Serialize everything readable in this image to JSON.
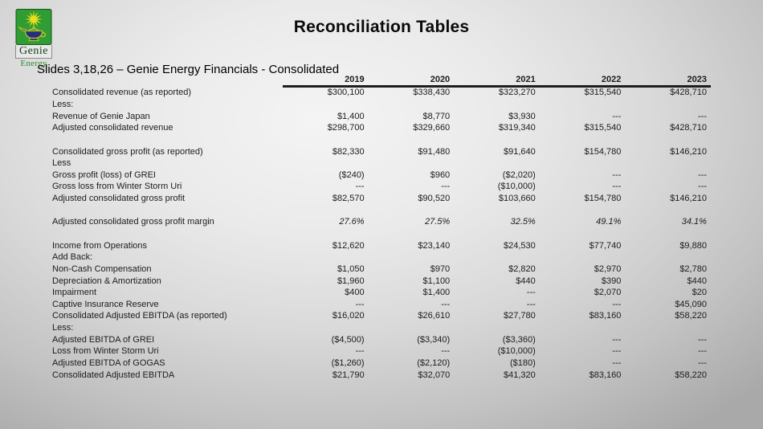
{
  "title": "Reconciliation Tables",
  "subtitle": "Slides 3,18,26 – Genie Energy Financials - Consolidated",
  "logo": {
    "name": "Genie",
    "sub": "Energy",
    "colors": {
      "square_green": "#2f9d33",
      "star_yellow": "#eade1d",
      "lamp_blue": "#22307c",
      "lamp_outline_olive": "#b9bf2a",
      "energy_text_green": "#2e8b2e"
    }
  },
  "chart_data": {
    "type": "table",
    "title": "Reconciliation Tables",
    "columns": [
      "2019",
      "2020",
      "2021",
      "2022",
      "2023"
    ],
    "rows": [
      {
        "label": "Consolidated revenue (as reported)",
        "values": [
          "$300,100",
          "$338,430",
          "$323,270",
          "$315,540",
          "$428,710"
        ]
      },
      {
        "label": "Less:",
        "values": []
      },
      {
        "label": "Revenue of Genie Japan",
        "values": [
          "$1,400",
          "$8,770",
          "$3,930",
          "---",
          "---"
        ]
      },
      {
        "label": "Adjusted consolidated revenue",
        "values": [
          "$298,700",
          "$329,660",
          "$319,340",
          "$315,540",
          "$428,710"
        ]
      },
      {
        "label": "",
        "values": [],
        "spacer": true
      },
      {
        "label": "Consolidated gross profit (as reported)",
        "values": [
          "$82,330",
          "$91,480",
          "$91,640",
          "$154,780",
          "$146,210"
        ]
      },
      {
        "label": "Less",
        "values": []
      },
      {
        "label": "Gross profit (loss) of GREI",
        "values": [
          "($240)",
          "$960",
          "($2,020)",
          "---",
          "---"
        ]
      },
      {
        "label": "Gross loss from Winter Storm Uri",
        "values": [
          "---",
          "---",
          "($10,000)",
          "---",
          "---"
        ]
      },
      {
        "label": "Adjusted consolidated gross profit",
        "values": [
          "$82,570",
          "$90,520",
          "$103,660",
          "$154,780",
          "$146,210"
        ]
      },
      {
        "label": "",
        "values": [],
        "spacer": true
      },
      {
        "label": "Adjusted consolidated gross profit margin",
        "values": [
          "27.6%",
          "27.5%",
          "32.5%",
          "49.1%",
          "34.1%"
        ],
        "italic": true
      },
      {
        "label": "",
        "values": [],
        "spacer": true
      },
      {
        "label": "Income from Operations",
        "values": [
          "$12,620",
          "$23,140",
          "$24,530",
          "$77,740",
          "$9,880"
        ]
      },
      {
        "label": "Add Back:",
        "values": []
      },
      {
        "label": "Non-Cash Compensation",
        "values": [
          "$1,050",
          "$970",
          "$2,820",
          "$2,970",
          "$2,780"
        ]
      },
      {
        "label": "Depreciation & Amortization",
        "values": [
          "$1,960",
          "$1,100",
          "$440",
          "$390",
          "$440"
        ]
      },
      {
        "label": "Impairment",
        "values": [
          "$400",
          "$1,400",
          "---",
          "$2,070",
          "$20"
        ]
      },
      {
        "label": "Captive Insurance Reserve",
        "values": [
          "---",
          "---",
          "---",
          "---",
          "$45,090"
        ]
      },
      {
        "label": "Consolidated Adjusted EBITDA (as reported)",
        "values": [
          "$16,020",
          "$26,610",
          "$27,780",
          "$83,160",
          "$58,220"
        ]
      },
      {
        "label": "Less:",
        "values": []
      },
      {
        "label": "Adjusted EBITDA of GREI",
        "values": [
          "($4,500)",
          "($3,340)",
          "($3,360)",
          "---",
          "---"
        ]
      },
      {
        "label": "Loss from Winter Storm Uri",
        "values": [
          "---",
          "---",
          "($10,000)",
          "---",
          "---"
        ]
      },
      {
        "label": "Adjusted EBITDA of GOGAS",
        "values": [
          "($1,260)",
          "($2,120)",
          "($180)",
          "---",
          "---"
        ]
      },
      {
        "label": "Consolidated Adjusted EBITDA",
        "values": [
          "$21,790",
          "$32,070",
          "$41,320",
          "$83,160",
          "$58,220"
        ]
      }
    ]
  }
}
